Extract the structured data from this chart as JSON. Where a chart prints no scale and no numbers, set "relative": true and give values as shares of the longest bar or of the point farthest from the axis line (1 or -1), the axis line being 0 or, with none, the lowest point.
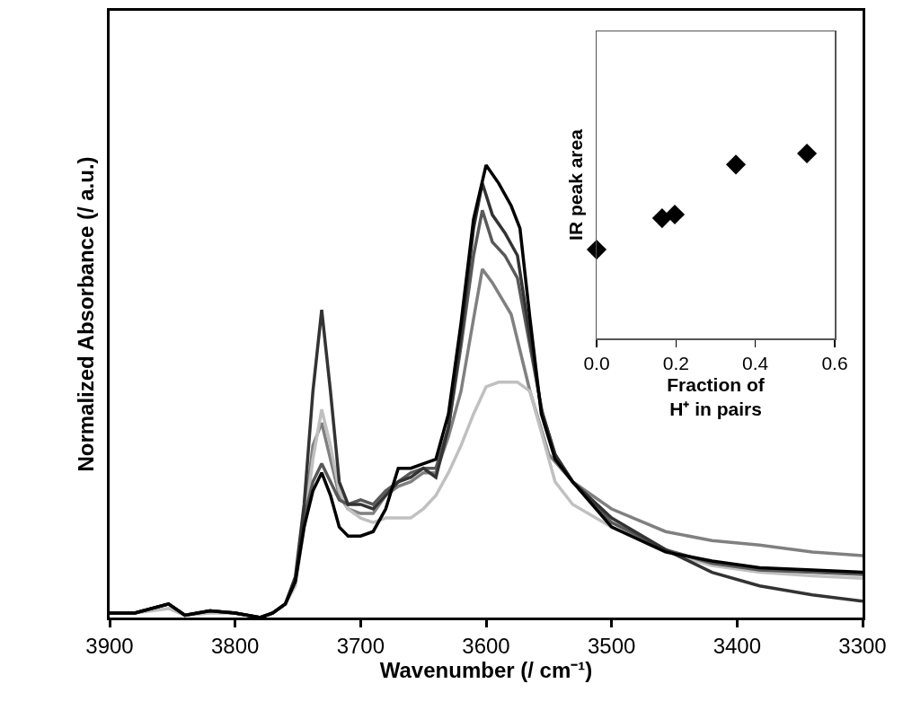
{
  "chart_data": [
    {
      "type": "line",
      "relative": true,
      "xlabel": "Wavenumber (/ cm⁻¹)",
      "ylabel": "Normalized Absorbance (/ a.u.)",
      "xlim": [
        3900,
        3300
      ],
      "xticks": [
        3900,
        3800,
        3700,
        3600,
        3500,
        3400,
        3300
      ],
      "line_style": "solid",
      "series": [
        {
          "color": "#808080",
          "x": [
            3900,
            3880,
            3853,
            3840,
            3820,
            3800,
            3780,
            3770,
            3760,
            3752,
            3745,
            3738,
            3731,
            3724,
            3717,
            3710,
            3700,
            3690,
            3680,
            3670,
            3660,
            3650,
            3640,
            3630,
            3620,
            3610,
            3603,
            3595,
            3580,
            3565,
            3550,
            3531,
            3500,
            3457,
            3420,
            3382,
            3340,
            3300
          ],
          "values": [
            0.01,
            0.01,
            0.03,
            0.005,
            0.015,
            0.01,
            0,
            0.01,
            0.03,
            0.08,
            0.22,
            0.38,
            0.43,
            0.35,
            0.27,
            0.24,
            0.23,
            0.23,
            0.27,
            0.29,
            0.3,
            0.32,
            0.32,
            0.4,
            0.5,
            0.66,
            0.77,
            0.74,
            0.67,
            0.5,
            0.36,
            0.3,
            0.24,
            0.19,
            0.17,
            0.16,
            0.145,
            0.137
          ]
        },
        {
          "color": "#c0c0c0",
          "x": [
            3900,
            3880,
            3853,
            3840,
            3820,
            3800,
            3780,
            3770,
            3760,
            3752,
            3745,
            3738,
            3731,
            3724,
            3717,
            3710,
            3700,
            3690,
            3680,
            3670,
            3660,
            3650,
            3640,
            3630,
            3620,
            3610,
            3600,
            3590,
            3575,
            3565,
            3555,
            3545,
            3531,
            3500,
            3457,
            3420,
            3382,
            3340,
            3300
          ],
          "values": [
            0.01,
            0.01,
            0.02,
            0.005,
            0.01,
            0.01,
            0,
            0.01,
            0.03,
            0.07,
            0.2,
            0.35,
            0.46,
            0.38,
            0.28,
            0.24,
            0.22,
            0.21,
            0.22,
            0.22,
            0.22,
            0.24,
            0.27,
            0.32,
            0.38,
            0.45,
            0.51,
            0.52,
            0.52,
            0.5,
            0.4,
            0.3,
            0.25,
            0.2,
            0.145,
            0.115,
            0.1,
            0.092,
            0.087
          ]
        },
        {
          "color": "#595959",
          "x": [
            3900,
            3880,
            3853,
            3840,
            3820,
            3800,
            3780,
            3770,
            3760,
            3752,
            3745,
            3738,
            3731,
            3724,
            3717,
            3710,
            3700,
            3690,
            3680,
            3670,
            3660,
            3650,
            3640,
            3630,
            3620,
            3610,
            3603,
            3595,
            3585,
            3575,
            3565,
            3555,
            3545,
            3531,
            3500,
            3457,
            3420,
            3382,
            3340,
            3300
          ],
          "values": [
            0.01,
            0.01,
            0.03,
            0.005,
            0.015,
            0.01,
            0,
            0.01,
            0.03,
            0.08,
            0.22,
            0.3,
            0.34,
            0.3,
            0.26,
            0.25,
            0.26,
            0.25,
            0.28,
            0.3,
            0.32,
            0.33,
            0.33,
            0.42,
            0.6,
            0.8,
            0.9,
            0.83,
            0.8,
            0.75,
            0.6,
            0.45,
            0.36,
            0.3,
            0.21,
            0.15,
            0.12,
            0.105,
            0.1,
            0.095
          ]
        },
        {
          "color": "#333333",
          "x": [
            3900,
            3880,
            3853,
            3840,
            3820,
            3800,
            3780,
            3770,
            3760,
            3752,
            3745,
            3738,
            3731,
            3724,
            3717,
            3710,
            3700,
            3690,
            3680,
            3670,
            3660,
            3650,
            3640,
            3630,
            3620,
            3610,
            3603,
            3595,
            3585,
            3575,
            3565,
            3556,
            3545,
            3531,
            3500,
            3457,
            3420,
            3382,
            3340,
            3300
          ],
          "values": [
            0.01,
            0.01,
            0.03,
            0.005,
            0.015,
            0.01,
            0,
            0.01,
            0.03,
            0.09,
            0.25,
            0.5,
            0.68,
            0.5,
            0.3,
            0.25,
            0.25,
            0.24,
            0.27,
            0.3,
            0.31,
            0.33,
            0.31,
            0.42,
            0.62,
            0.86,
            0.96,
            0.89,
            0.85,
            0.8,
            0.62,
            0.46,
            0.36,
            0.3,
            0.22,
            0.15,
            0.1,
            0.07,
            0.05,
            0.036
          ]
        },
        {
          "color": "#000000",
          "x": [
            3900,
            3880,
            3853,
            3840,
            3820,
            3800,
            3780,
            3770,
            3760,
            3752,
            3745,
            3738,
            3731,
            3724,
            3717,
            3710,
            3700,
            3690,
            3680,
            3670,
            3660,
            3650,
            3640,
            3630,
            3620,
            3610,
            3600,
            3590,
            3580,
            3573,
            3565,
            3556,
            3545,
            3531,
            3500,
            3457,
            3420,
            3382,
            3340,
            3300
          ],
          "values": [
            0.01,
            0.01,
            0.03,
            0.005,
            0.015,
            0.01,
            0,
            0.01,
            0.03,
            0.08,
            0.2,
            0.28,
            0.32,
            0.27,
            0.2,
            0.18,
            0.18,
            0.19,
            0.24,
            0.33,
            0.33,
            0.34,
            0.35,
            0.45,
            0.65,
            0.88,
            1.0,
            0.96,
            0.91,
            0.86,
            0.66,
            0.45,
            0.35,
            0.3,
            0.2,
            0.145,
            0.125,
            0.11,
            0.105,
            0.1
          ]
        }
      ]
    },
    {
      "type": "scatter",
      "relative": true,
      "xlabel": "Fraction of\nH⁺ in pairs",
      "ylabel": "IR peak area",
      "xlim": [
        0,
        0.6
      ],
      "xticks": [
        {
          "value": 0,
          "label": "0.0"
        },
        {
          "value": 0.2,
          "label": "0.2"
        },
        {
          "value": 0.4,
          "label": "0.4"
        },
        {
          "value": 0.6,
          "label": "0.6"
        }
      ],
      "marker": "diamond",
      "series": [
        {
          "color": "#000000",
          "x": [
            0,
            0.165,
            0.197,
            0.351,
            0.53
          ],
          "values": [
            0.48,
            0.65,
            0.67,
            0.94,
            1
          ]
        }
      ]
    }
  ]
}
